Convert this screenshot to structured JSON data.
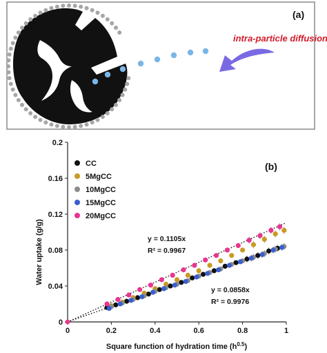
{
  "panel_a": {
    "label": "(a)",
    "caption": "intra-particle diffusion",
    "colors": {
      "particle": "#111111",
      "pore_dot": "#a6a6a6",
      "diffusing": "#79b6e8",
      "caption": "#d11a2a",
      "arrow": "#6a5ae0",
      "frame": "#8a8a8a"
    }
  },
  "chart_data": {
    "type": "scatter",
    "panel_label": "(b)",
    "title": "",
    "xlabel": "Square function of hydration time (h",
    "xlabel_sup": "0.5",
    "xlabel_close": ")",
    "ylabel": "Water uptake (g/g)",
    "xlim": [
      0,
      1
    ],
    "ylim": [
      0,
      0.2
    ],
    "x_ticks": [
      0,
      0.2,
      0.4,
      0.6,
      0.8,
      1
    ],
    "x_tick_labels": [
      "0",
      "0.2",
      "0.4",
      "0.6",
      "0.8",
      "1"
    ],
    "y_ticks": [
      0,
      0.04,
      0.08,
      0.12,
      0.16,
      0.2
    ],
    "y_tick_labels": [
      "0",
      "0.04",
      "0.08",
      "0.12",
      "0.16",
      "0.2"
    ],
    "grid": false,
    "legend_position": "top-left",
    "series": [
      {
        "name": "CC",
        "color": "#111111",
        "points": [
          [
            0.18,
            0.016
          ],
          [
            0.22,
            0.019
          ],
          [
            0.27,
            0.023
          ],
          [
            0.32,
            0.027
          ],
          [
            0.37,
            0.031
          ],
          [
            0.42,
            0.036
          ],
          [
            0.47,
            0.04
          ],
          [
            0.52,
            0.044
          ],
          [
            0.57,
            0.049
          ],
          [
            0.62,
            0.053
          ],
          [
            0.67,
            0.057
          ],
          [
            0.72,
            0.062
          ],
          [
            0.77,
            0.066
          ],
          [
            0.82,
            0.07
          ],
          [
            0.87,
            0.074
          ],
          [
            0.92,
            0.079
          ],
          [
            0.96,
            0.082
          ]
        ]
      },
      {
        "name": "5MgCC",
        "color": "#c99a22",
        "points": [
          [
            0.2,
            0.018
          ],
          [
            0.25,
            0.022
          ],
          [
            0.3,
            0.027
          ],
          [
            0.35,
            0.032
          ],
          [
            0.4,
            0.037
          ],
          [
            0.45,
            0.042
          ],
          [
            0.5,
            0.047
          ],
          [
            0.55,
            0.052
          ],
          [
            0.6,
            0.057
          ],
          [
            0.65,
            0.063
          ],
          [
            0.7,
            0.068
          ],
          [
            0.75,
            0.074
          ],
          [
            0.8,
            0.08
          ],
          [
            0.85,
            0.086
          ],
          [
            0.9,
            0.092
          ],
          [
            0.95,
            0.098
          ],
          [
            0.99,
            0.102
          ]
        ]
      },
      {
        "name": "10MgCC",
        "color": "#8c8c8c",
        "points": [
          [
            0.2,
            0.017
          ],
          [
            0.25,
            0.021
          ],
          [
            0.3,
            0.025
          ],
          [
            0.35,
            0.029
          ],
          [
            0.4,
            0.034
          ],
          [
            0.45,
            0.038
          ],
          [
            0.5,
            0.042
          ],
          [
            0.55,
            0.046
          ],
          [
            0.6,
            0.051
          ],
          [
            0.65,
            0.055
          ],
          [
            0.7,
            0.059
          ],
          [
            0.75,
            0.064
          ],
          [
            0.8,
            0.068
          ],
          [
            0.85,
            0.072
          ],
          [
            0.9,
            0.076
          ],
          [
            0.95,
            0.081
          ],
          [
            0.99,
            0.084
          ]
        ]
      },
      {
        "name": "15MgCC",
        "color": "#3a5fd0",
        "points": [
          [
            0.19,
            0.015
          ],
          [
            0.24,
            0.02
          ],
          [
            0.29,
            0.024
          ],
          [
            0.34,
            0.028
          ],
          [
            0.39,
            0.033
          ],
          [
            0.44,
            0.037
          ],
          [
            0.49,
            0.041
          ],
          [
            0.54,
            0.045
          ],
          [
            0.59,
            0.05
          ],
          [
            0.64,
            0.054
          ],
          [
            0.69,
            0.058
          ],
          [
            0.74,
            0.063
          ],
          [
            0.79,
            0.067
          ],
          [
            0.84,
            0.071
          ],
          [
            0.89,
            0.075
          ],
          [
            0.94,
            0.08
          ],
          [
            0.98,
            0.083
          ]
        ]
      },
      {
        "name": "20MgCC",
        "color": "#e8358f",
        "points": [
          [
            0.18,
            0.02
          ],
          [
            0.23,
            0.025
          ],
          [
            0.28,
            0.03
          ],
          [
            0.33,
            0.036
          ],
          [
            0.38,
            0.041
          ],
          [
            0.43,
            0.047
          ],
          [
            0.48,
            0.052
          ],
          [
            0.53,
            0.058
          ],
          [
            0.58,
            0.063
          ],
          [
            0.63,
            0.069
          ],
          [
            0.68,
            0.074
          ],
          [
            0.73,
            0.08
          ],
          [
            0.78,
            0.085
          ],
          [
            0.83,
            0.091
          ],
          [
            0.88,
            0.096
          ],
          [
            0.93,
            0.102
          ],
          [
            0.97,
            0.106
          ]
        ]
      }
    ],
    "fit_lines": [
      {
        "slope": 0.1105,
        "equation": "y = 0.1105x",
        "r2": "R² = 0.9967"
      },
      {
        "slope": 0.0858,
        "equation": "y = 0.0858x",
        "r2": "R² = 0.9976"
      }
    ],
    "origin_point": [
      0,
      0
    ]
  }
}
